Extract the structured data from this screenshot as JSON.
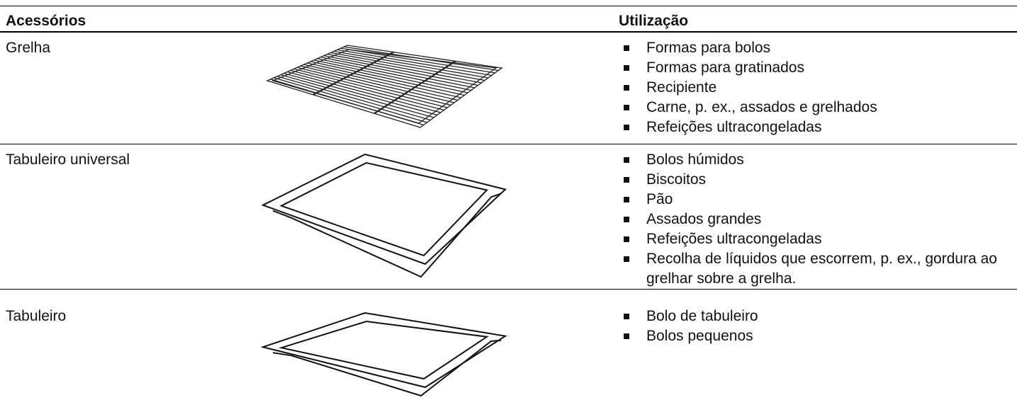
{
  "header": {
    "col1": "Acessórios",
    "col2": "Utilização"
  },
  "rows": [
    {
      "name": "Grelha",
      "uses": [
        "Formas para bolos",
        "Formas para gratinados",
        "Recipiente",
        "Carne, p. ex., assados e grelhados",
        "Refeições ultracongeladas"
      ]
    },
    {
      "name": "Tabuleiro universal",
      "uses": [
        "Bolos húmidos",
        "Biscoitos",
        "Pão",
        "Assados grandes",
        "Refeições ultracongeladas",
        "Recolha de líquidos que escorrem, p. ex., gordura ao grelhar sobre a grelha."
      ]
    },
    {
      "name": "Tabuleiro",
      "uses": [
        "Bolo de tabuleiro",
        "Bolos pequenos"
      ]
    }
  ]
}
